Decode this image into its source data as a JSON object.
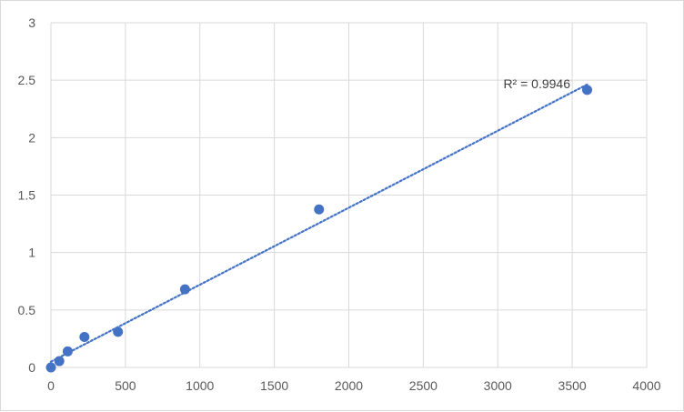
{
  "chart_data": {
    "type": "scatter",
    "title": "",
    "xlabel": "",
    "ylabel": "",
    "xlim": [
      0,
      4000
    ],
    "ylim": [
      0,
      3
    ],
    "xticks": [
      0,
      500,
      1000,
      1500,
      2000,
      2500,
      3000,
      3500,
      4000
    ],
    "yticks": [
      0,
      0.5,
      1,
      1.5,
      2,
      2.5,
      3
    ],
    "grid": true,
    "legend": "none",
    "series": [
      {
        "x": [
          0,
          56.25,
          112.5,
          225,
          450,
          900,
          1800,
          3600
        ],
        "y": [
          0.0,
          0.055,
          0.14,
          0.265,
          0.31,
          0.68,
          1.375,
          2.415
        ],
        "color": "#4472c4"
      }
    ],
    "trendline": {
      "type": "linear",
      "x_range": [
        0,
        3600
      ],
      "slope": 0.00067,
      "intercept": 0.05,
      "style": "dotted",
      "color": "#4472c4",
      "r2_label": "R² = 0.9946"
    }
  }
}
